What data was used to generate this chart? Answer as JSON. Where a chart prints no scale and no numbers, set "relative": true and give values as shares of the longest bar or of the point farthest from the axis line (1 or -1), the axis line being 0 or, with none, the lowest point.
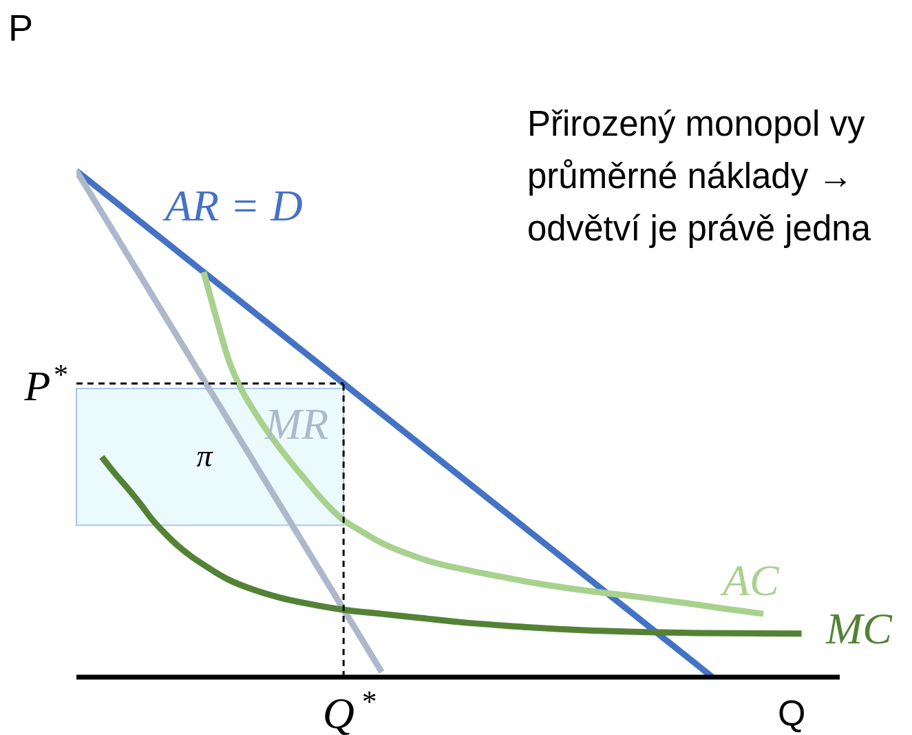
{
  "chart_data": {
    "type": "line",
    "relative": true,
    "xlabel": "Q",
    "ylabel": "P",
    "marker": "none",
    "line_style": "solid",
    "categories": [
      null,
      null,
      null,
      null,
      null,
      null,
      null,
      null,
      null,
      null,
      null,
      null,
      null,
      null,
      null,
      null,
      null,
      null,
      null,
      null,
      null,
      null,
      null,
      null,
      null,
      null,
      null,
      null,
      null,
      null,
      null,
      null,
      null,
      null,
      null,
      null,
      null,
      null,
      null,
      null,
      null,
      null,
      null,
      null,
      null,
      null,
      null,
      null,
      null,
      null,
      null,
      null,
      null,
      null,
      null,
      null,
      null,
      null,
      null,
      null,
      null
    ],
    "series": [
      {
        "name": "AR = D",
        "color": "#4472c4",
        "values": [
          1,
          null,
          null,
          null,
          null,
          null,
          null,
          null,
          null,
          null,
          null,
          null,
          null,
          null,
          null,
          null,
          null,
          null,
          null,
          null,
          null,
          null,
          null,
          null,
          null,
          null,
          null,
          null,
          null,
          null,
          null,
          null,
          null,
          null,
          null,
          null,
          null,
          null,
          null,
          null,
          null,
          null,
          null,
          null,
          null,
          null,
          null,
          null,
          null,
          null,
          0,
          null,
          null,
          null,
          null,
          null,
          null,
          null,
          null,
          null,
          null
        ]
      },
      {
        "name": "MR",
        "color": "#adb9ca",
        "values": [
          1,
          null,
          null,
          null,
          null,
          null,
          null,
          null,
          null,
          null,
          null,
          null,
          null,
          null,
          null,
          null,
          null,
          null,
          null,
          null,
          null,
          null,
          null,
          null,
          0.01,
          null,
          null,
          null,
          null,
          null,
          null,
          null,
          null,
          null,
          null,
          null,
          null,
          null,
          null,
          null,
          null,
          null,
          null,
          null,
          null,
          null,
          null,
          null,
          null,
          null,
          null,
          null,
          null,
          null,
          null,
          null,
          null,
          null,
          null,
          null,
          null
        ]
      },
      {
        "name": "AC",
        "color": "#a9d18e",
        "values": [
          null,
          null,
          null,
          null,
          null,
          null,
          null,
          null,
          null,
          null,
          0.8,
          0.709,
          0.624,
          0.567,
          0.524,
          0.486,
          0.452,
          0.42,
          0.39,
          0.36,
          0.333,
          0.31,
          0.294,
          0.279,
          0.265,
          null,
          0.244,
          null,
          0.227,
          null,
          0.215,
          null,
          null,
          0.2,
          null,
          null,
          0.186,
          null,
          null,
          null,
          0.171,
          null,
          null,
          null,
          0.159,
          null,
          null,
          null,
          0.146,
          null,
          null,
          0.135,
          null,
          null,
          0.125,
          null,
          null,
          null,
          null,
          null,
          null
        ]
      },
      {
        "name": "MC",
        "color": "#548235",
        "values": [
          null,
          null,
          0.435,
          0.403,
          0.374,
          0.343,
          0.31,
          0.283,
          0.259,
          0.239,
          0.222,
          0.206,
          0.192,
          null,
          0.172,
          null,
          0.157,
          null,
          0.146,
          null,
          null,
          0.133,
          null,
          null,
          0.125,
          null,
          null,
          0.117,
          null,
          null,
          0.109,
          null,
          null,
          null,
          0.101,
          null,
          null,
          null,
          0.095,
          null,
          null,
          null,
          null,
          0.09,
          null,
          null,
          null,
          null,
          null,
          0.087,
          null,
          null,
          null,
          null,
          null,
          null,
          null,
          0.086,
          null,
          null,
          null
        ]
      }
    ],
    "ref_lines": [
      {
        "axis": "y",
        "value": 0.58,
        "label": "P$^{*}$",
        "line_style": "dashed",
        "color": "#000000"
      },
      {
        "axis": "x",
        "value": "Q$^{*}$",
        "line_style": "dashed",
        "color": "#000000"
      }
    ],
    "bands": [
      {
        "axis": "y",
        "from": 0.3,
        "to": 0.57,
        "label": "π",
        "color": "#e3fafc"
      }
    ],
    "annotations": [
      "Přirozený monopol vy\nprůměrné náklady →\nodvětví je právě jedna"
    ]
  }
}
